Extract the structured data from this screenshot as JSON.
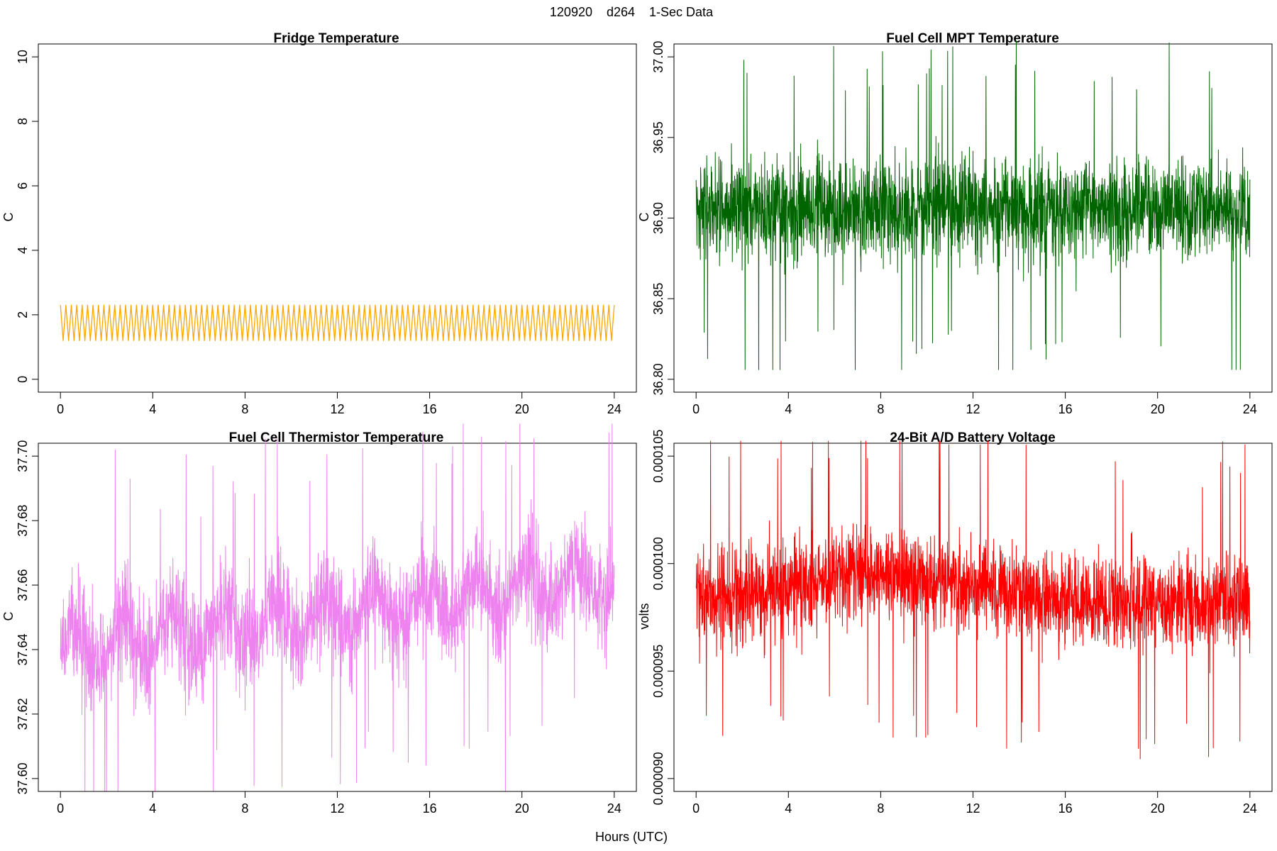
{
  "figure": {
    "title": "120920    d264    1-Sec Data",
    "xlabel": "Hours (UTC)"
  },
  "chart_data": [
    {
      "id": "fridge",
      "type": "line",
      "title": "Fridge Temperature",
      "ylabel": "C",
      "color": "#FFA500",
      "xlim": [
        0,
        24
      ],
      "ylim": [
        0,
        10
      ],
      "xticks": [
        0,
        4,
        8,
        12,
        16,
        20,
        24
      ],
      "yticks": [
        0,
        2,
        4,
        6,
        8,
        10
      ],
      "ytick_labels": [
        "0",
        "2",
        "4",
        "6",
        "8",
        "10"
      ],
      "pattern": {
        "kind": "sawtooth",
        "min": 1.2,
        "max": 2.3,
        "cycles": 102
      }
    },
    {
      "id": "mpt",
      "type": "line",
      "title": "Fuel Cell MPT Temperature",
      "ylabel": "C",
      "color": "#006400",
      "xlim": [
        0,
        24
      ],
      "ylim": [
        36.8,
        37.0
      ],
      "xticks": [
        0,
        4,
        8,
        12,
        16,
        20,
        24
      ],
      "yticks": [
        36.8,
        36.85,
        36.9,
        36.95,
        37.0
      ],
      "ytick_labels": [
        "36.80",
        "36.85",
        "36.90",
        "36.95",
        "37.00"
      ],
      "pattern": {
        "kind": "noise",
        "center": 36.905,
        "min": 36.806,
        "max": 37.017
      }
    },
    {
      "id": "thermistor",
      "type": "line",
      "title": "Fuel Cell Thermistor Temperature",
      "ylabel": "C",
      "color": "#EE82EE",
      "xlim": [
        0,
        24
      ],
      "ylim": [
        37.6,
        37.7
      ],
      "xticks": [
        0,
        4,
        8,
        12,
        16,
        20,
        24
      ],
      "yticks": [
        37.6,
        37.62,
        37.64,
        37.66,
        37.68,
        37.7
      ],
      "ytick_labels": [
        "37.60",
        "37.62",
        "37.64",
        "37.66",
        "37.68",
        "37.70"
      ],
      "pattern": {
        "kind": "noise",
        "start_center": 37.64,
        "end_center": 37.662,
        "min": 37.596,
        "max": 37.71
      }
    },
    {
      "id": "battery",
      "type": "line",
      "title": "24-Bit A/D Battery Voltage",
      "ylabel": "volts",
      "color": "#FF0000",
      "xlim": [
        0,
        24
      ],
      "ylim": [
        9e-05,
        0.000105
      ],
      "xticks": [
        0,
        4,
        8,
        12,
        16,
        20,
        24
      ],
      "yticks": [
        9e-05,
        9.5e-05,
        0.0001,
        0.000105
      ],
      "ytick_labels": [
        "0.000090",
        "0.000095",
        "0.000100",
        "0.000105"
      ],
      "pattern": {
        "kind": "noise",
        "center": 9.82e-05,
        "peak_center_hour": 8,
        "peak_center": 9.95e-05,
        "min": 9.05e-05,
        "max": 0.0001057
      }
    }
  ]
}
